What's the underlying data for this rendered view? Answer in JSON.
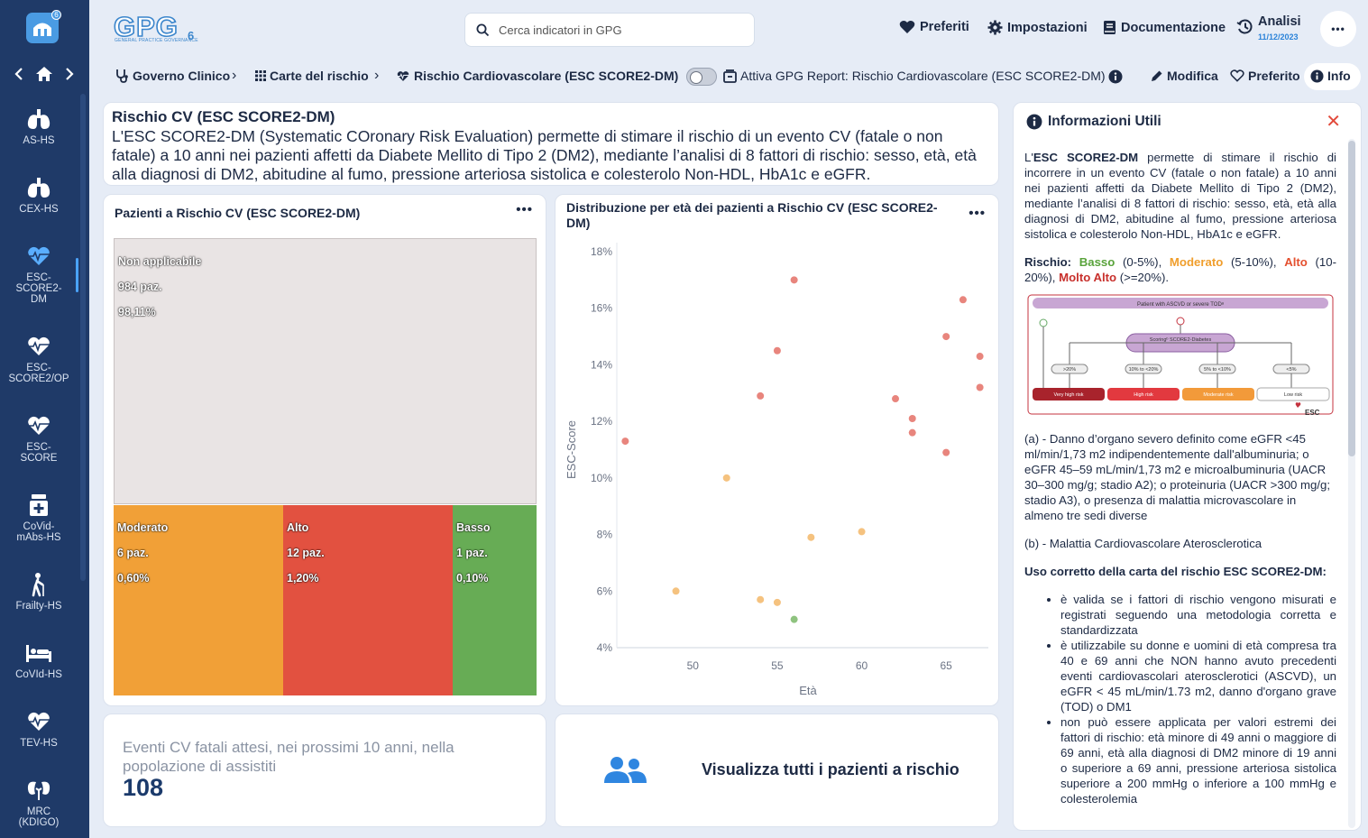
{
  "sidebar": {
    "logo_badge": "6",
    "items": [
      {
        "label": "AS-HS",
        "icon": "lungs-icon"
      },
      {
        "label": "CEX-HS",
        "icon": "lungs-icon"
      },
      {
        "label": "ESC-\nSCORE2-\nDM",
        "icon": "heart-pulse-icon"
      },
      {
        "label": "ESC-\nSCORE2/OP",
        "icon": "heart-pulse-icon"
      },
      {
        "label": "ESC-\nSCORE",
        "icon": "heart-pulse-icon"
      },
      {
        "label": "CoVid-\nmAbs-HS",
        "icon": "medicine-icon"
      },
      {
        "label": "Frailty-HS",
        "icon": "elderly-cane-icon"
      },
      {
        "label": "CoVId-HS",
        "icon": "hospital-bed-icon"
      },
      {
        "label": "TEV-HS",
        "icon": "heart-pulse-icon"
      },
      {
        "label": "MRC\n(KDIGO)",
        "icon": "kidneys-icon"
      }
    ]
  },
  "header": {
    "logo_text": "GPG",
    "logo_sub": "GENERAL PRACTICE GOVERNANCE",
    "logo_version": "6",
    "search_placeholder": "Cerca indicatori in GPG",
    "links": {
      "preferiti": "Preferiti",
      "impostazioni": "Impostazioni",
      "documentazione": "Documentazione",
      "analisi": "Analisi",
      "analisi_date": "11/12/2023"
    },
    "more": "•••"
  },
  "breadcrumb": {
    "items": [
      "Governo Clinico",
      "Carte del rischio",
      "Rischio Cardiovascolare (ESC SCORE2-DM)"
    ],
    "sep": "›",
    "report_label": "Attiva GPG Report: Rischio Cardiovascolare (ESC SCORE2-DM)",
    "modifica": "Modifica",
    "preferito": "Preferito",
    "info": "Info"
  },
  "description": {
    "title": "Rischio CV (ESC SCORE2-DM)",
    "text": "L'ESC SCORE2-DM (Systematic COronary Risk Evaluation) permette di stimare il rischio di un evento CV (fatale o non fatale) a 10 anni nei pazienti affetti da Diabete Mellito di Tipo 2 (DM2), mediante l’analisi di 8 fattori di rischio: sesso, età, età alla diagnosi di DM2, abitudine al fumo, pressione arteriosa sistolica e colesterolo Non-HDL, HbA1c e eGFR."
  },
  "treemap_card": {
    "title": "Pazienti a Rischio CV (ESC SCORE2-DM)",
    "more": "•••",
    "tiles": [
      {
        "name": "Non applicabile",
        "count": "984 paz.",
        "pct": "98,11%",
        "value": 98.11,
        "color": "#e9e4e4"
      },
      {
        "name": "Moderato",
        "count": "6 paz.",
        "pct": "0,60%",
        "value": 0.6,
        "color": "#f1a037"
      },
      {
        "name": "Alto",
        "count": "12 paz.",
        "pct": "1,20%",
        "value": 1.2,
        "color": "#e25140"
      },
      {
        "name": "Basso",
        "count": "1 paz.",
        "pct": "0,10%",
        "value": 0.1,
        "color": "#67ac55"
      }
    ]
  },
  "scatter_card": {
    "title": "Distribuzione per età dei pazienti a Rischio CV (ESC SCORE2-DM)",
    "more": "•••"
  },
  "chart_data": {
    "type": "scatter",
    "title": "Distribuzione per età dei pazienti a Rischio CV (ESC SCORE2-DM)",
    "xlabel": "Età",
    "ylabel": "ESC-Score",
    "xlim": [
      45.5,
      67.5
    ],
    "ylim": [
      4,
      18
    ],
    "xticks": [
      50,
      55,
      60,
      65
    ],
    "yticks": [
      4,
      6,
      8,
      10,
      12,
      14,
      16,
      18
    ],
    "ytick_labels": [
      "4%",
      "6%",
      "8%",
      "10%",
      "12%",
      "14%",
      "16%",
      "18%"
    ],
    "grid": false,
    "series": [
      {
        "name": "Alto",
        "color": "#e8857d",
        "points": [
          [
            46,
            11.3
          ],
          [
            54,
            12.9
          ],
          [
            55,
            14.5
          ],
          [
            56,
            17.0
          ],
          [
            62,
            12.8
          ],
          [
            63,
            12.1
          ],
          [
            63,
            11.6
          ],
          [
            65,
            15.0
          ],
          [
            65,
            10.9
          ],
          [
            66,
            16.3
          ],
          [
            67,
            14.3
          ],
          [
            67,
            13.2
          ]
        ]
      },
      {
        "name": "Moderato",
        "color": "#f5c27f",
        "points": [
          [
            49,
            6.0
          ],
          [
            52,
            10.0
          ],
          [
            54,
            5.7
          ],
          [
            55,
            5.6
          ],
          [
            57,
            7.9
          ],
          [
            60,
            8.1
          ]
        ]
      },
      {
        "name": "Basso",
        "color": "#8fc37f",
        "points": [
          [
            56,
            5.0
          ]
        ]
      }
    ]
  },
  "stat_card": {
    "label": "Eventi CV fatali attesi, nei prossimi 10 anni, nella popolazione di assistiti",
    "value": "108"
  },
  "cta_card": {
    "label": "Visualizza tutti i pazienti a rischio"
  },
  "info_panel": {
    "title": "Informazioni Utili",
    "close": "✕",
    "intro_bold": "ESC SCORE2-DM",
    "intro_pre": "L'",
    "intro_rest": " permette di stimare il rischio di incorrere in un evento CV (fatale o non fatale) a 10 anni nei pazienti affetti da Diabete Mellito di Tipo 2 (DM2), mediante l’analisi di 8 fattori di rischio: sesso, età, età alla diagnosi di DM2, abitudine al fumo, pressione arteriosa sistolica e colesterolo Non-HDL, HbA1c e eGFR.",
    "rischio_label": "Rischio:",
    "basso": "Basso",
    "basso_range": " (0-5%), ",
    "moderato": "Moderato",
    "moderato_range": " (5-10%), ",
    "alto": "Alto",
    "alto_range": " (10-20%), ",
    "molto_alto": "Molto Alto",
    "molto_alto_range": " (>=20%).",
    "diagram": {
      "top": "Patient with ASCVD or severe TODᵃ",
      "scoring": "Scoringᵇ\nSCORE2-Diabetes",
      "ranges": [
        ">20%",
        "10% to <20%",
        "5% to <10%",
        "<5%"
      ],
      "risks": [
        "Very high risk",
        "High risk",
        "Moderate risk",
        "Low risk"
      ],
      "esc": "ESC"
    },
    "note_a": "(a) - Danno d’organo severo definito come eGFR <45 ml/min/1,73 m2 indipendentemente dall'albuminuria; o eGFR 45–59 mL/min/1,73 m2 e microalbuminuria (UACR 30–300 mg/g; stadio A2); o proteinuria (UACR >300 mg/g; stadio A3), o presenza di malattia microvascolare in almeno tre sedi diverse",
    "note_b": "(b) - Malattia Cardiovascolare Aterosclerotica",
    "uso_title": "Uso corretto della carta del rischio ESC SCORE2-DM:",
    "bullets": [
      "è valida se i fattori di rischio vengono misurati e registrati seguendo una metodologia corretta e standardizzata",
      "è utilizzabile su donne e uomini di età compresa tra 40 e 69 anni che NON hanno avuto precedenti eventi cardiovascolari aterosclerotici (ASCVD), un eGFR < 45 mL/min/1.73 m2, danno d'organo grave (TOD) o DM1",
      "non può essere applicata per valori estremi dei fattori di rischio: età minore di 49 anni o maggiore di 69 anni, età alla diagnosi di DM2 minore di 19 anni o superiore a 69 anni, pressione arteriosa sistolica superiore a 200 mmHg o inferiore a 100 mmHg e colesterolemia"
    ]
  }
}
